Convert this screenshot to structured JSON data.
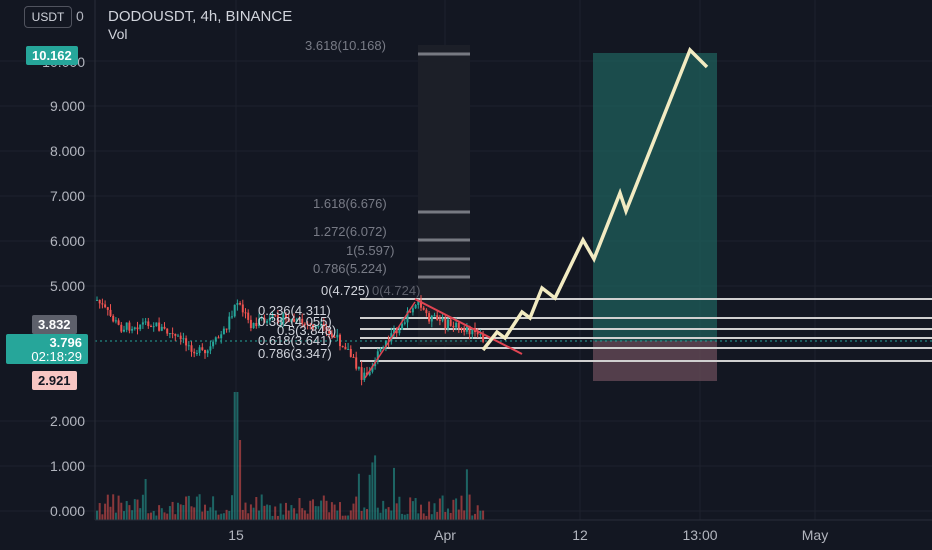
{
  "header": {
    "symbol_title": "DODOUSDT, 4h, BINANCE",
    "volume_label": "Vol",
    "currency_button": "USDT",
    "axis_top_label": "0"
  },
  "price_axis": {
    "labels": [
      "9.000",
      "8.000",
      "7.000",
      "6.000",
      "5.000",
      "2.000",
      "1.000",
      "0.000"
    ],
    "top_badge": "10.162",
    "price_badge_1": "3.832",
    "price_badge_2": "3.796",
    "countdown": "02:18:29",
    "low_badge": "2.921",
    "peak_partial": "10.000"
  },
  "time_axis": {
    "labels": [
      "15",
      "Apr",
      "12",
      "13:00",
      "May"
    ]
  },
  "fib_levels": {
    "upper": [
      {
        "label": "3.618(10.168)"
      },
      {
        "label": "1.618(6.676)"
      },
      {
        "label": "1.272(6.072)"
      },
      {
        "label": "1(5.597)"
      },
      {
        "label": "0.786(5.224)"
      }
    ],
    "lower": [
      {
        "label": "0(4.725)"
      },
      {
        "label": "0.236(4.311)"
      },
      {
        "label": "0.382(4.055)"
      },
      {
        "label": "0.5(3.848)"
      },
      {
        "label": "0.618(3.641)"
      },
      {
        "label": "0.786(3.347)"
      }
    ],
    "ghost_label": "0(4.724)"
  },
  "colors": {
    "background": "#131722",
    "up": "#26a69a",
    "down": "#ef5350",
    "fib_line": "#c8c8c8",
    "projection": "#f2ebc2",
    "target_zone": "#1f5f5b",
    "stop_zone": "#6a4c5a",
    "trendline": "#e04452"
  }
}
